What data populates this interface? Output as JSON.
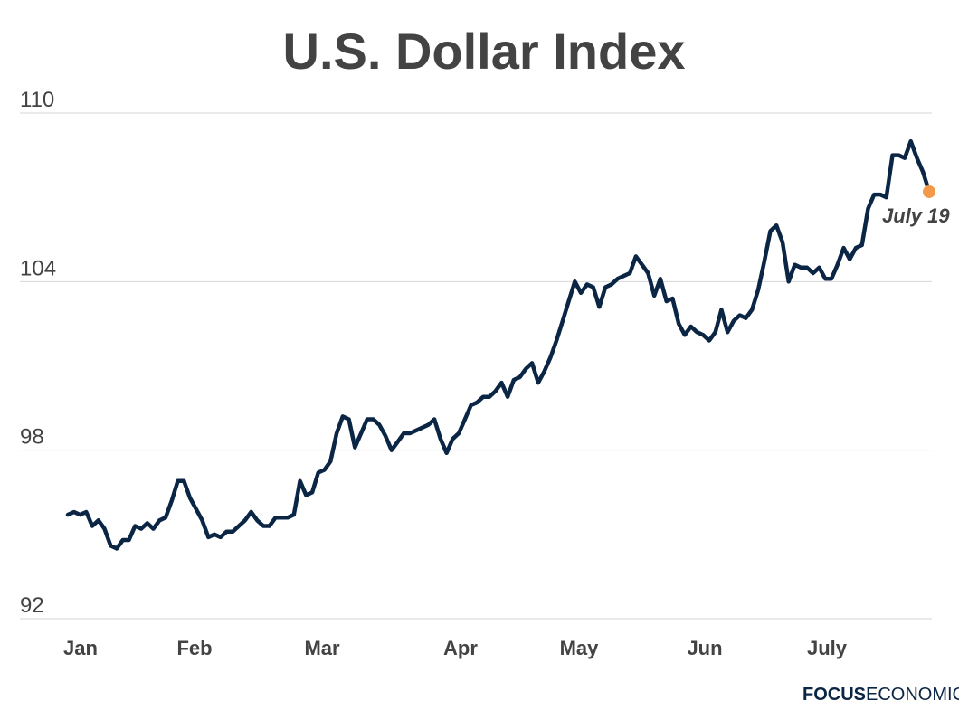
{
  "chart_data": {
    "type": "line",
    "title": "U.S. Dollar Index",
    "xlabel": "",
    "ylabel": "",
    "ylim": [
      92,
      110
    ],
    "yticks": [
      "110",
      "104",
      "98",
      "92"
    ],
    "xticks": [
      "Jan",
      "Feb",
      "Mar",
      "Apr",
      "May",
      "Jun",
      "July"
    ],
    "grid": true,
    "series": [
      {
        "values": [
          95.7,
          95.8,
          95.7,
          95.8,
          95.3,
          95.5,
          95.2,
          94.6,
          94.5,
          94.8,
          94.8,
          95.3,
          95.2,
          95.4,
          95.2,
          95.5,
          95.6,
          96.2,
          96.9,
          96.9,
          96.3,
          95.9,
          95.5,
          94.9,
          95.0,
          94.9,
          95.1,
          95.1,
          95.3,
          95.5,
          95.8,
          95.5,
          95.3,
          95.3,
          95.6,
          95.6,
          95.6,
          95.7,
          96.9,
          96.4,
          96.5,
          97.2,
          97.3,
          97.6,
          98.6,
          99.2,
          99.1,
          98.1,
          98.6,
          99.1,
          99.1,
          98.9,
          98.5,
          98.0,
          98.3,
          98.6,
          98.6,
          98.7,
          98.8,
          98.9,
          99.1,
          98.4,
          97.9,
          98.4,
          98.6,
          99.1,
          99.6,
          99.7,
          99.9,
          99.9,
          100.1,
          100.4,
          99.9,
          100.5,
          100.6,
          100.9,
          101.1,
          100.4,
          100.8,
          101.3,
          101.9,
          102.6,
          103.3,
          104.0,
          103.6,
          103.9,
          103.8,
          103.1,
          103.8,
          103.9,
          104.1,
          104.2,
          104.3,
          104.9,
          104.6,
          104.3,
          103.5,
          104.1,
          103.3,
          103.4,
          102.5,
          102.1,
          102.4,
          102.2,
          102.1,
          101.9,
          102.2,
          103.0,
          102.2,
          102.6,
          102.8,
          102.7,
          103.0,
          103.7,
          104.7,
          105.8,
          106.0,
          105.4,
          104.0,
          104.6,
          104.5,
          104.5,
          104.3,
          104.5,
          104.1,
          104.1,
          104.6,
          105.2,
          104.8,
          105.2,
          105.3,
          106.6,
          107.1,
          107.1,
          107.0,
          108.5,
          108.5,
          108.4,
          109.0,
          108.4,
          107.9,
          107.2
        ]
      }
    ],
    "annotation": "July 19",
    "colors": {
      "line": "#0b2545",
      "marker": "#f2994a",
      "grid": "#d6d6d6",
      "text": "#434343"
    }
  },
  "branding": {
    "part1": "FOCUS",
    "part2": "ECONOMICS"
  }
}
